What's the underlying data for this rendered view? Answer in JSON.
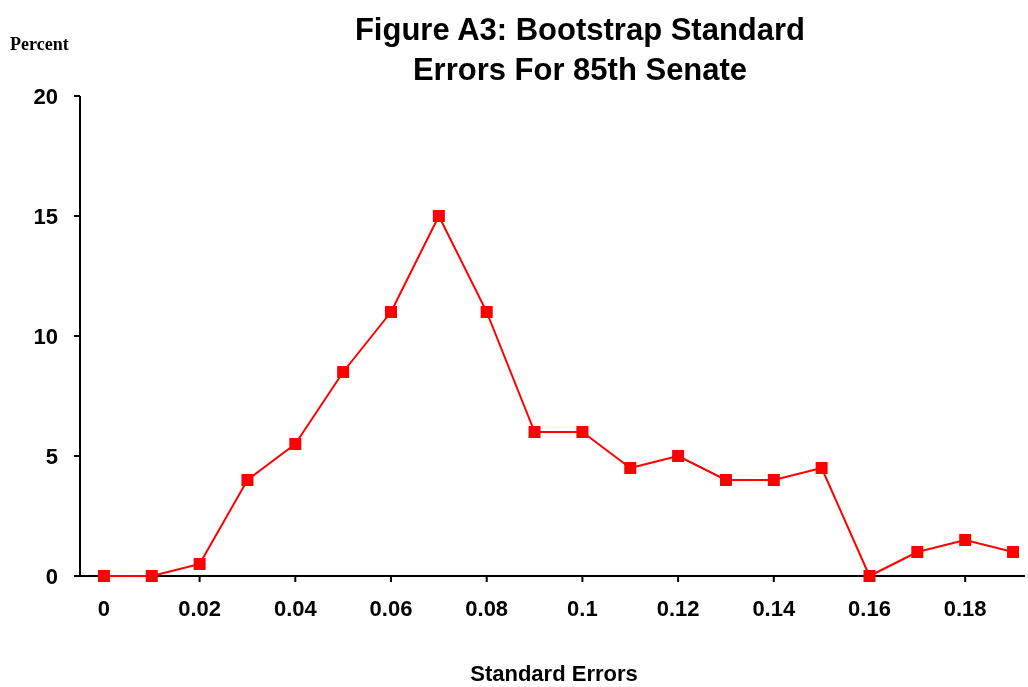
{
  "chart_data": {
    "type": "line",
    "title": "Figure A3: Bootstrap Standard Errors For 85th Senate",
    "xlabel": "Standard Errors",
    "ylabel": "Percent",
    "x": [
      0,
      0.01,
      0.02,
      0.03,
      0.04,
      0.05,
      0.06,
      0.07,
      0.08,
      0.09,
      0.1,
      0.11,
      0.12,
      0.13,
      0.14,
      0.15,
      0.16,
      0.17,
      0.18,
      0.19
    ],
    "series": [
      {
        "color": "#ff0000",
        "values": [
          0,
          0,
          0.5,
          4,
          5.5,
          8.5,
          11,
          15,
          11,
          6,
          6,
          4.5,
          5,
          4,
          4,
          4.5,
          0,
          1,
          1.5,
          1
        ]
      }
    ],
    "xlim": [
      -0.005,
      0.1925
    ],
    "xticks": [
      0,
      0.02,
      0.04,
      0.06,
      0.08,
      {
        "value": 0.1,
        "label": "0.1"
      },
      0.12,
      0.14,
      0.16,
      0.18
    ],
    "ylim": [
      0,
      20
    ],
    "yticks": [
      0,
      5,
      10,
      15,
      20
    ],
    "grid": false,
    "marker": "square",
    "line_style": "solid"
  }
}
